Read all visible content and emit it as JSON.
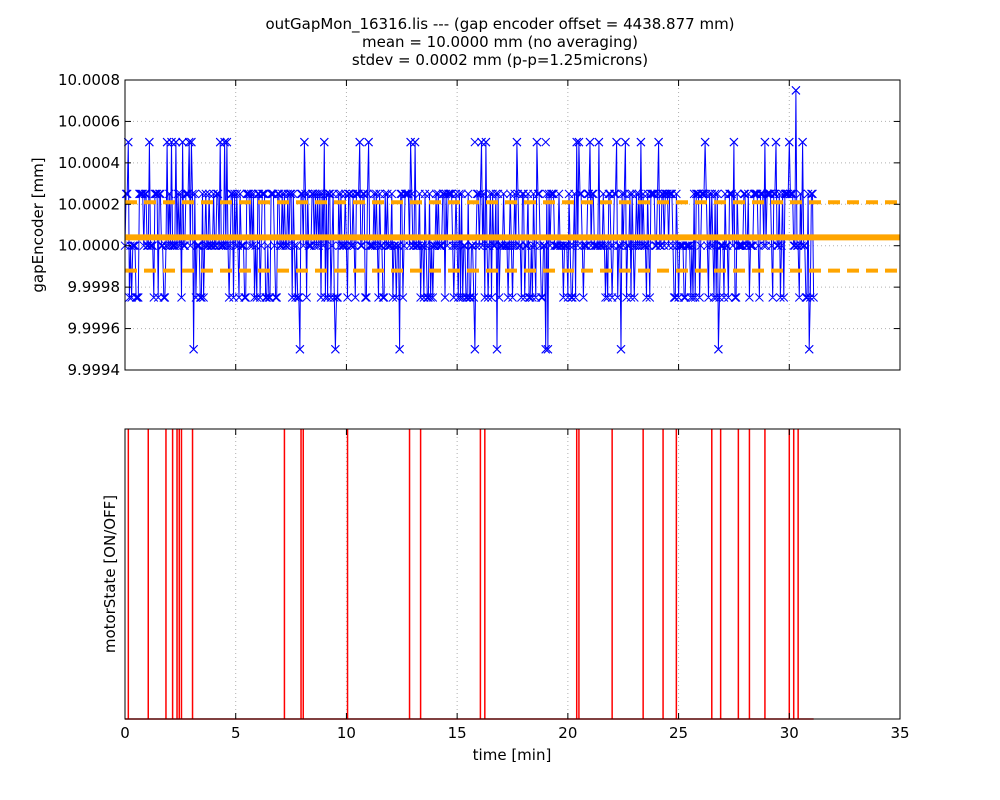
{
  "title": {
    "line1": "outGapMon_16316.lis --- (gap encoder offset = 4438.877 mm)",
    "line2": "mean = 10.0000 mm (no averaging)",
    "line3": "stdev = 0.0002 mm (p-p=1.25microns)"
  },
  "colors": {
    "series": "#0000ff",
    "mean": "#ffa500",
    "motor": "#ff0000",
    "grid": "#b0b0b0"
  },
  "chart_data": [
    {
      "type": "line",
      "marker": "x",
      "xlabel": "",
      "ylabel": "gapEncoder [mm]",
      "xlim": [
        0,
        35
      ],
      "ylim": [
        9.9994,
        10.0008
      ],
      "x_ticks": [
        0,
        5,
        10,
        15,
        20,
        25,
        30,
        35
      ],
      "x_tick_labels_shown": false,
      "y_ticks": [
        "9.9994",
        "9.9996",
        "9.9998",
        "10.0000",
        "10.0002",
        "10.0004",
        "10.0006",
        "10.0008"
      ],
      "grid": true,
      "data_range_x": [
        0,
        31.1
      ],
      "levels": [
        9.99975,
        10.0,
        10.00025
      ],
      "spikes_high": [
        [
          0.15,
          10.0005
        ],
        [
          1.1,
          10.0005
        ],
        [
          1.9,
          10.0005
        ],
        [
          2.1,
          10.0005
        ],
        [
          2.3,
          10.0005
        ],
        [
          2.6,
          10.0005
        ],
        [
          2.9,
          10.0005
        ],
        [
          3.0,
          10.0005
        ],
        [
          4.3,
          10.0005
        ],
        [
          4.5,
          10.0005
        ],
        [
          4.6,
          10.0005
        ],
        [
          8.1,
          10.0005
        ],
        [
          9.0,
          10.0005
        ],
        [
          10.6,
          10.0005
        ],
        [
          11.0,
          10.0005
        ],
        [
          12.9,
          10.0005
        ],
        [
          13.1,
          10.0005
        ],
        [
          15.8,
          10.0005
        ],
        [
          16.1,
          10.0005
        ],
        [
          16.3,
          10.0005
        ],
        [
          17.7,
          10.0005
        ],
        [
          18.6,
          10.0005
        ],
        [
          19.0,
          10.0005
        ],
        [
          20.4,
          10.0005
        ],
        [
          20.5,
          10.0005
        ],
        [
          21.0,
          10.0005
        ],
        [
          21.4,
          10.0005
        ],
        [
          22.2,
          10.0005
        ],
        [
          22.6,
          10.0005
        ],
        [
          23.3,
          10.0005
        ],
        [
          24.1,
          10.0005
        ],
        [
          26.2,
          10.0005
        ],
        [
          27.5,
          10.0005
        ],
        [
          28.9,
          10.0005
        ],
        [
          29.4,
          10.0005
        ],
        [
          30.0,
          10.0005
        ],
        [
          30.6,
          10.0005
        ],
        [
          30.3,
          10.00075
        ]
      ],
      "spikes_low": [
        [
          3.1,
          9.9995
        ],
        [
          7.9,
          9.9995
        ],
        [
          9.5,
          9.9995
        ],
        [
          12.4,
          9.9995
        ],
        [
          15.8,
          9.9995
        ],
        [
          16.8,
          9.9995
        ],
        [
          19.0,
          9.9995
        ],
        [
          19.1,
          9.9995
        ],
        [
          22.4,
          9.9995
        ],
        [
          26.8,
          9.9995
        ],
        [
          30.9,
          9.9995
        ]
      ],
      "mean_line": 10.00004,
      "sigma_lines": [
        9.99988,
        10.00021
      ],
      "reference_lines_xmax": 35
    },
    {
      "type": "line",
      "xlabel": "time [min]",
      "ylabel": "motorState [ON/OFF]",
      "xlim": [
        0,
        35
      ],
      "x_ticks": [
        0,
        5,
        10,
        15,
        20,
        25,
        30,
        35
      ],
      "x_tick_labels": [
        "0",
        "5",
        "10",
        "15",
        "20",
        "25",
        "30",
        "35"
      ],
      "y_ticks": [],
      "grid": true,
      "baseline_x_range": [
        0,
        31.1
      ],
      "on_events": [
        0.15,
        1.05,
        1.85,
        2.15,
        2.35,
        2.45,
        2.55,
        3.05,
        7.2,
        7.95,
        8.05,
        10.05,
        12.85,
        13.35,
        16.05,
        16.25,
        20.4,
        20.5,
        22.0,
        23.4,
        24.3,
        24.9,
        26.5,
        26.9,
        27.7,
        28.2,
        28.9,
        30.0,
        30.2,
        30.4
      ]
    }
  ]
}
